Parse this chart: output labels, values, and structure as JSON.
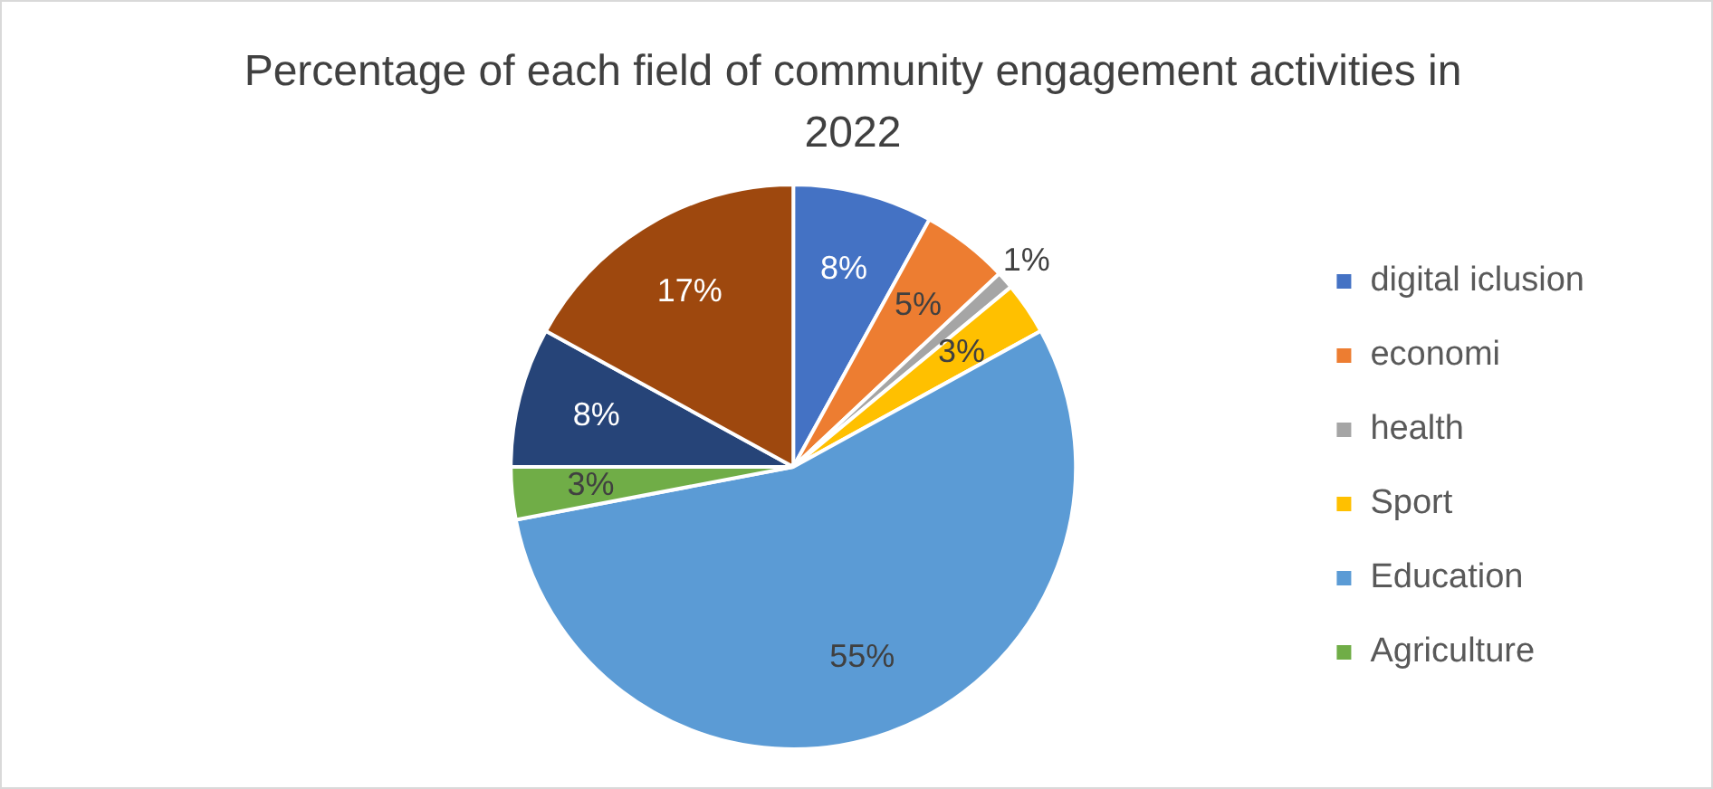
{
  "chart_data": {
    "type": "pie",
    "title": "Percentage of each field of community engagement activities in 2022",
    "categories": [
      "digital iclusion",
      "economi",
      "health",
      "Sport",
      "Education",
      "Agriculture",
      null,
      null
    ],
    "values": [
      8,
      5,
      1,
      3,
      55,
      3,
      8,
      17
    ],
    "value_labels": [
      "8%",
      "5%",
      "1%",
      "3%",
      "55%",
      "3%",
      "8%",
      "17%"
    ],
    "colors": [
      "#4472c4",
      "#ed7d31",
      "#a5a5a5",
      "#ffc000",
      "#5b9bd5",
      "#70ad47",
      "#264478",
      "#9e480e"
    ],
    "legend": "right"
  }
}
